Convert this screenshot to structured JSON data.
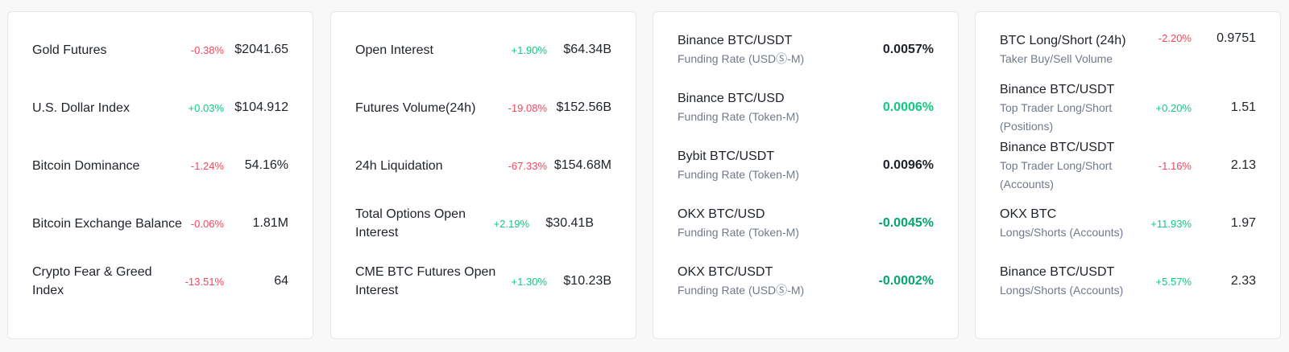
{
  "colors": {
    "negative": "#f6465d",
    "positive": "#0ecb81",
    "strong_positive": "#03a66d"
  },
  "card1": [
    {
      "title": "Gold Futures",
      "change": "-0.38%",
      "value": "$2041.65"
    },
    {
      "title": "U.S. Dollar Index",
      "change": "+0.03%",
      "value": "$104.912"
    },
    {
      "title": "Bitcoin Dominance",
      "change": "-1.24%",
      "value": "54.16%"
    },
    {
      "title": "Bitcoin Exchange Balance",
      "change": "-0.06%",
      "value": "1.81M"
    },
    {
      "title": "Crypto Fear & Greed Index",
      "change": "-13.51%",
      "value": "64"
    }
  ],
  "card2": [
    {
      "title": "Open Interest",
      "change": "+1.90%",
      "value": "$64.34B"
    },
    {
      "title": "Futures Volume(24h)",
      "change": "-19.08%",
      "value": "$152.56B"
    },
    {
      "title": "24h Liquidation",
      "change": "-67.33%",
      "value": "$154.68M"
    },
    {
      "title": "Total Options Open Interest",
      "change": "+2.19%",
      "value": "$30.41B"
    },
    {
      "title": "CME BTC Futures Open Interest",
      "change": "+1.30%",
      "value": "$10.23B"
    }
  ],
  "card3": [
    {
      "title": "Binance BTC/USDT",
      "subtitle": "Funding Rate (USDⓈ-M)",
      "value": "0.0057%"
    },
    {
      "title": "Binance BTC/USD",
      "subtitle": "Funding Rate (Token-M)",
      "value": "0.0006%"
    },
    {
      "title": "Bybit BTC/USDT",
      "subtitle": "Funding Rate (Token-M)",
      "value": "0.0096%"
    },
    {
      "title": "OKX BTC/USD",
      "subtitle": "Funding Rate (Token-M)",
      "value": "-0.0045%"
    },
    {
      "title": "OKX BTC/USDT",
      "subtitle": "Funding Rate (USDⓈ-M)",
      "value": "-0.0002%"
    }
  ],
  "card4": [
    {
      "title": "BTC Long/Short (24h)",
      "subtitle": "Taker Buy/Sell Volume",
      "change": "-2.20%",
      "value": "0.9751"
    },
    {
      "title": "Binance BTC/USDT",
      "subtitle": "Top Trader Long/Short (Positions)",
      "change": "+0.20%",
      "value": "1.51"
    },
    {
      "title": "Binance BTC/USDT",
      "subtitle": "Top Trader Long/Short (Accounts)",
      "change": "-1.16%",
      "value": "2.13"
    },
    {
      "title": "OKX BTC",
      "subtitle": "Longs/Shorts (Accounts)",
      "change": "+11.93%",
      "value": "1.97"
    },
    {
      "title": "Binance BTC/USDT",
      "subtitle": "Longs/Shorts (Accounts)",
      "change": "+5.57%",
      "value": "2.33"
    }
  ]
}
